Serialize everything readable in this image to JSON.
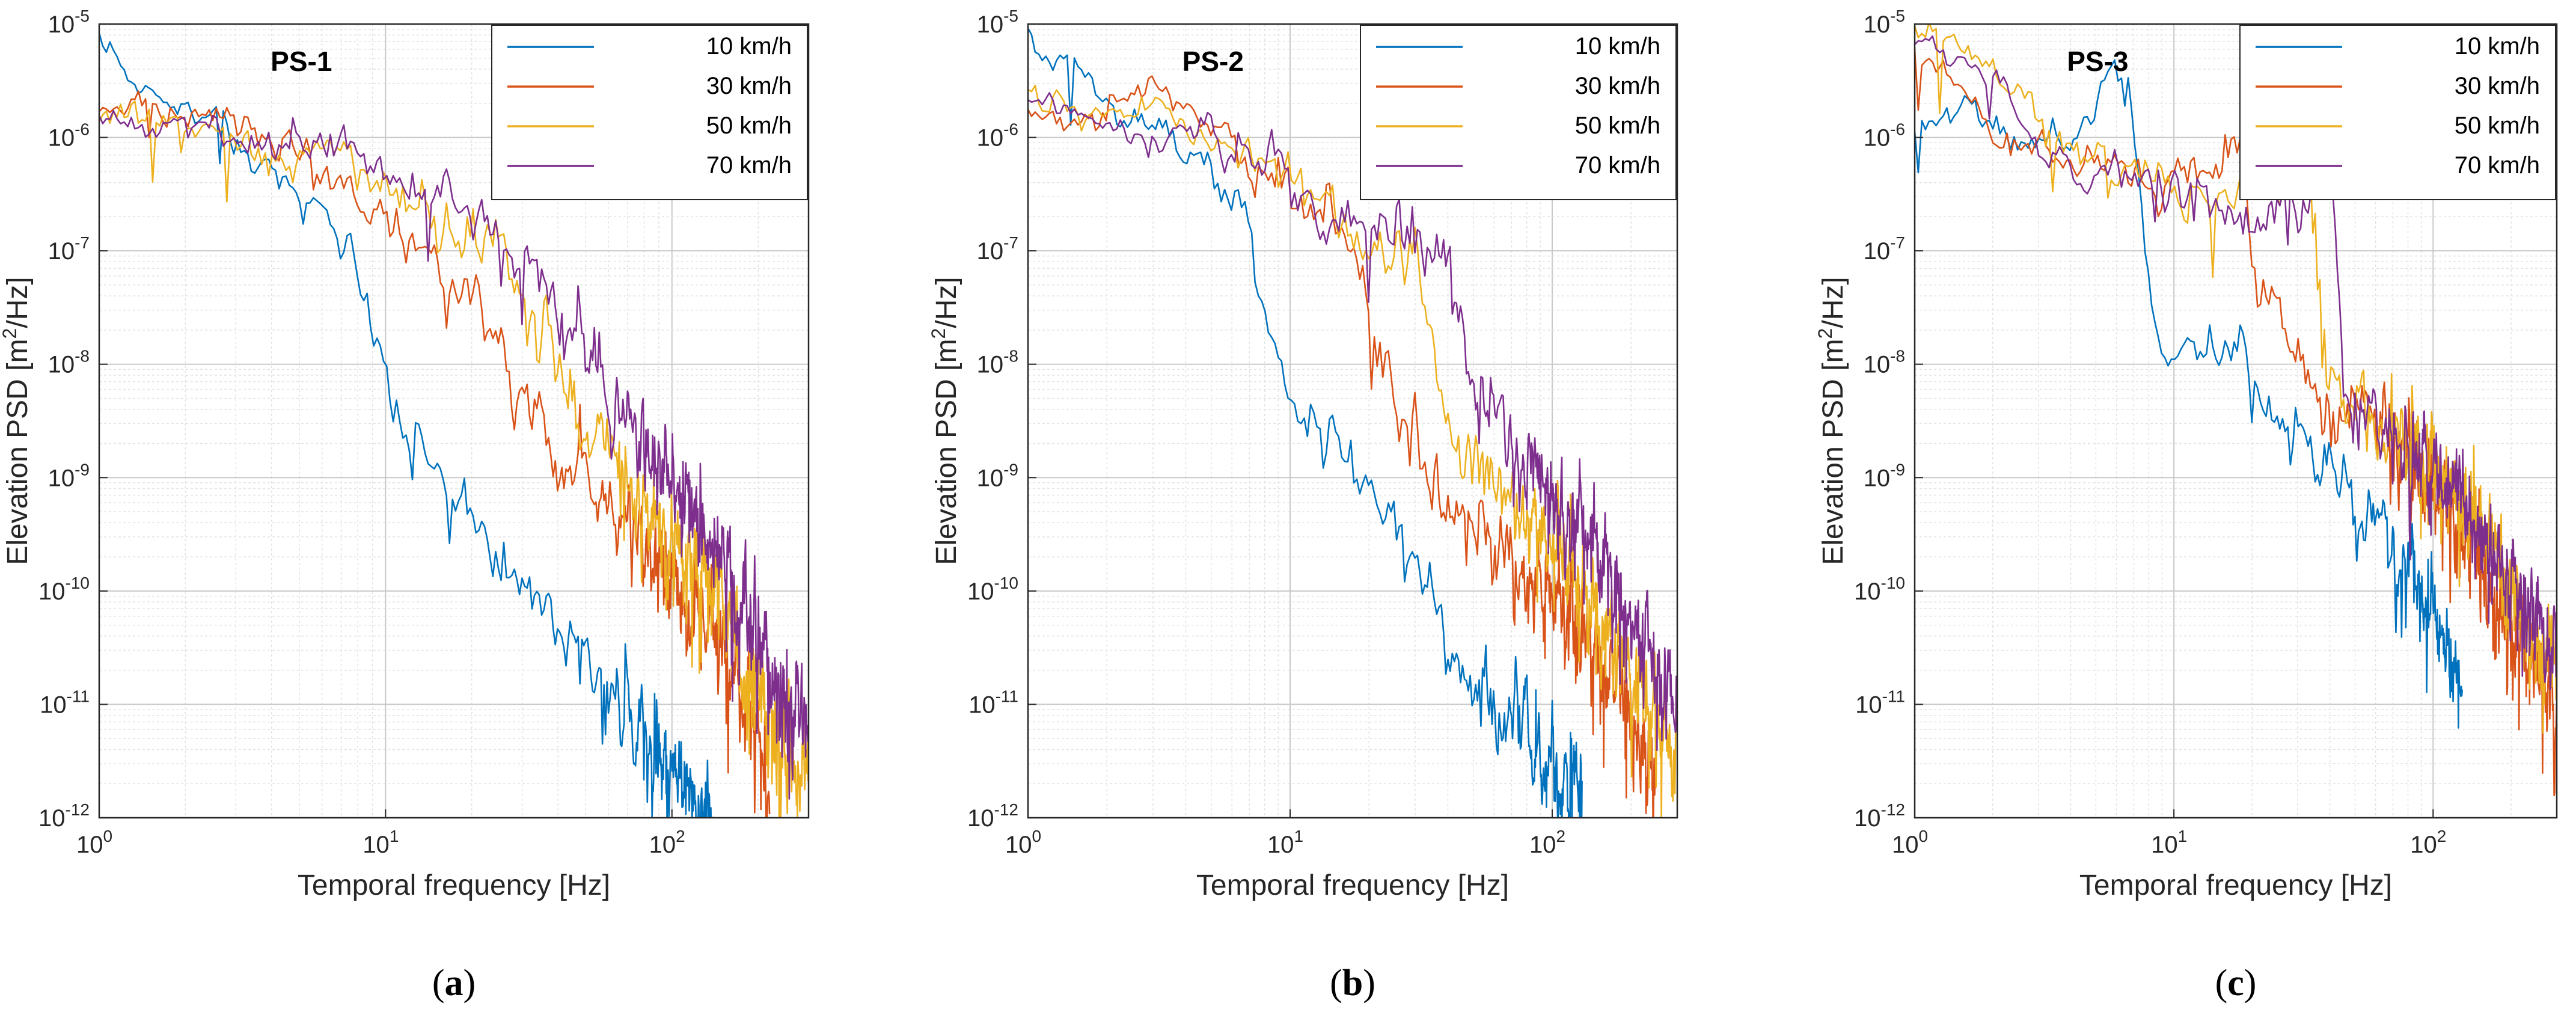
{
  "figure": {
    "colors": {
      "10 km/h": "#0072BD",
      "30 km/h": "#D95319",
      "50 km/h": "#EDB120",
      "70 km/h": "#7E2F8E"
    }
  },
  "chart_data": [
    {
      "type": "line",
      "panel_letter": "a",
      "title": "PS-1",
      "xlabel": "Temporal frequency [Hz]",
      "ylabel": "Elevation PSD [m²/Hz]",
      "ylabel_parts": {
        "pre": "Elevation PSD [m",
        "sup": "2",
        "post": "/Hz]"
      },
      "xscale": "log",
      "yscale": "log",
      "xlim": [
        1,
        300
      ],
      "ylim": [
        1e-12,
        1e-05
      ],
      "grid": true,
      "legend_position": "top-right",
      "x_ticks": [
        {
          "value": 1,
          "base": "10",
          "exp": "0"
        },
        {
          "value": 10,
          "base": "10",
          "exp": "1"
        },
        {
          "value": 100,
          "base": "10",
          "exp": "2"
        }
      ],
      "y_ticks": [
        {
          "value": 1e-05,
          "base": "10",
          "exp": "-5"
        },
        {
          "value": 1e-06,
          "base": "10",
          "exp": "-6"
        },
        {
          "value": 1e-07,
          "base": "10",
          "exp": "-7"
        },
        {
          "value": 1e-08,
          "base": "10",
          "exp": "-8"
        },
        {
          "value": 1e-09,
          "base": "10",
          "exp": "-9"
        },
        {
          "value": 1e-10,
          "base": "10",
          "exp": "-10"
        },
        {
          "value": 1e-11,
          "base": "10",
          "exp": "-11"
        },
        {
          "value": 1e-12,
          "base": "10",
          "exp": "-12"
        }
      ],
      "series": [
        {
          "name": "10 km/h",
          "x": [
            1,
            1.3,
            1.7,
            2,
            2.5,
            3,
            4,
            5,
            6,
            7,
            8,
            10,
            12,
            15,
            20,
            30,
            50,
            80,
            120,
            140
          ],
          "y": [
            8e-06,
            3e-06,
            2e-06,
            2e-06,
            1.5e-06,
            1e-06,
            5e-07,
            3e-07,
            2e-07,
            1.2e-07,
            5e-08,
            1e-08,
            3e-09,
            1e-09,
            4e-10,
            1.2e-10,
            2.5e-11,
            5e-12,
            1.5e-12,
            1e-12
          ]
        },
        {
          "name": "30 km/h",
          "x": [
            1,
            1.5,
            2,
            2.5,
            3,
            4,
            5,
            6,
            8,
            10,
            12,
            15,
            20,
            25,
            30,
            40,
            60,
            100,
            150,
            200,
            220
          ],
          "y": [
            1.6e-06,
            2e-06,
            1.5e-06,
            1.8e-06,
            1.2e-06,
            8e-07,
            7e-07,
            5e-07,
            3e-07,
            2e-07,
            1.2e-07,
            8e-08,
            3e-08,
            1.2e-08,
            5e-09,
            1.5e-09,
            5e-10,
            1.2e-10,
            3e-11,
            4e-12,
            1.5e-12
          ]
        },
        {
          "name": "50 km/h",
          "x": [
            1,
            1.5,
            2,
            3,
            4,
            5,
            6,
            7,
            8,
            10,
            15,
            20,
            30,
            40,
            50,
            60,
            80,
            100,
            150,
            200,
            300
          ],
          "y": [
            1.8e-06,
            1.5e-06,
            1.3e-06,
            1e-06,
            8e-07,
            6e-07,
            1e-06,
            7e-07,
            5e-07,
            4e-07,
            2e-07,
            1.2e-07,
            4e-08,
            1e-08,
            4e-09,
            2e-09,
            6e-10,
            3e-10,
            7e-11,
            1e-11,
            2e-12
          ]
        },
        {
          "name": "70 km/h",
          "x": [
            1,
            1.5,
            2,
            3,
            4,
            5,
            6,
            8,
            10,
            15,
            20,
            30,
            40,
            50,
            60,
            80,
            100,
            150,
            200,
            250,
            300
          ],
          "y": [
            1.5e-06,
            1.1e-06,
            1.3e-06,
            1e-06,
            8e-07,
            1e-06,
            9e-07,
            8e-07,
            4e-07,
            3e-07,
            2e-07,
            7e-08,
            3e-08,
            1.2e-08,
            6e-09,
            2e-09,
            8e-10,
            1.5e-10,
            5e-11,
            1.5e-11,
            5e-12
          ]
        }
      ]
    },
    {
      "type": "line",
      "panel_letter": "b",
      "title": "PS-2",
      "xlabel": "Temporal frequency [Hz]",
      "ylabel": "Elevation PSD [m²/Hz]",
      "ylabel_parts": {
        "pre": "Elevation PSD [m",
        "sup": "2",
        "post": "/Hz]"
      },
      "xscale": "log",
      "yscale": "log",
      "xlim": [
        1,
        300
      ],
      "ylim": [
        1e-12,
        1e-05
      ],
      "grid": true,
      "legend_position": "top-right",
      "x_ticks": [
        {
          "value": 1,
          "base": "10",
          "exp": "0"
        },
        {
          "value": 10,
          "base": "10",
          "exp": "1"
        },
        {
          "value": 100,
          "base": "10",
          "exp": "2"
        }
      ],
      "y_ticks": [
        {
          "value": 1e-05,
          "base": "10",
          "exp": "-5"
        },
        {
          "value": 1e-06,
          "base": "10",
          "exp": "-6"
        },
        {
          "value": 1e-07,
          "base": "10",
          "exp": "-7"
        },
        {
          "value": 1e-08,
          "base": "10",
          "exp": "-8"
        },
        {
          "value": 1e-09,
          "base": "10",
          "exp": "-9"
        },
        {
          "value": 1e-10,
          "base": "10",
          "exp": "-10"
        },
        {
          "value": 1e-11,
          "base": "10",
          "exp": "-11"
        },
        {
          "value": 1e-12,
          "base": "10",
          "exp": "-12"
        }
      ],
      "series": [
        {
          "name": "10 km/h",
          "x": [
            1,
            1.2,
            1.5,
            2,
            3,
            4,
            5,
            6,
            6.5,
            7,
            8,
            10,
            15,
            20,
            30,
            40,
            60,
            80,
            100,
            130
          ],
          "y": [
            9e-06,
            4e-06,
            5e-06,
            2e-06,
            1e-06,
            7e-07,
            5e-07,
            4e-07,
            3e-07,
            1.5e-07,
            2e-08,
            5e-09,
            2e-09,
            8e-10,
            1.5e-10,
            3e-11,
            1e-11,
            5e-12,
            3e-12,
            2e-12
          ]
        },
        {
          "name": "30 km/h",
          "x": [
            1,
            1.5,
            2,
            3,
            4,
            5,
            7,
            10,
            15,
            18,
            20,
            22,
            25,
            30,
            40,
            60,
            100,
            150,
            200,
            250
          ],
          "y": [
            2e-06,
            1.3e-06,
            1.5e-06,
            4e-06,
            1.5e-06,
            1e-06,
            6e-07,
            3e-07,
            1.5e-07,
            1e-07,
            3e-08,
            1e-08,
            5e-09,
            2e-09,
            7e-10,
            3e-10,
            1e-10,
            3e-11,
            8e-12,
            2e-12
          ]
        },
        {
          "name": "50 km/h",
          "x": [
            1,
            1.5,
            2,
            3,
            4,
            5,
            7,
            10,
            15,
            20,
            30,
            33,
            36,
            40,
            50,
            70,
            100,
            150,
            200,
            300
          ],
          "y": [
            2.5e-06,
            1.8e-06,
            1.4e-06,
            1.5e-06,
            1.2e-06,
            1e-06,
            7e-07,
            4e-07,
            2e-07,
            1.5e-07,
            8e-08,
            2e-08,
            8e-09,
            3e-09,
            1.5e-09,
            7e-10,
            3e-10,
            6e-11,
            2e-11,
            3e-12
          ]
        },
        {
          "name": "70 km/h",
          "x": [
            1,
            1.5,
            2,
            3,
            4,
            5,
            7,
            10,
            15,
            20,
            30,
            40,
            45,
            50,
            60,
            80,
            100,
            150,
            200,
            300
          ],
          "y": [
            2e-06,
            1.7e-06,
            1.3e-06,
            1e-06,
            1.2e-06,
            9e-07,
            7e-07,
            5e-07,
            2e-07,
            2.5e-07,
            1.5e-07,
            8e-08,
            3e-08,
            5e-09,
            2e-09,
            1.2e-09,
            7e-10,
            2e-10,
            5e-11,
            1e-11
          ]
        }
      ]
    },
    {
      "type": "line",
      "panel_letter": "c",
      "title": "PS-3",
      "xlabel": "Temporal frequency [Hz]",
      "ylabel": "Elevation PSD [m²/Hz]",
      "ylabel_parts": {
        "pre": "Elevation PSD [m",
        "sup": "2",
        "post": "/Hz]"
      },
      "xscale": "log",
      "yscale": "log",
      "xlim": [
        1,
        300
      ],
      "ylim": [
        1e-12,
        1e-05
      ],
      "grid": true,
      "legend_position": "top-right",
      "x_ticks": [
        {
          "value": 1,
          "base": "10",
          "exp": "0"
        },
        {
          "value": 10,
          "base": "10",
          "exp": "1"
        },
        {
          "value": 100,
          "base": "10",
          "exp": "2"
        }
      ],
      "y_ticks": [
        {
          "value": 1e-05,
          "base": "10",
          "exp": "-5"
        },
        {
          "value": 1e-06,
          "base": "10",
          "exp": "-6"
        },
        {
          "value": 1e-07,
          "base": "10",
          "exp": "-7"
        },
        {
          "value": 1e-08,
          "base": "10",
          "exp": "-8"
        },
        {
          "value": 1e-09,
          "base": "10",
          "exp": "-9"
        },
        {
          "value": 1e-10,
          "base": "10",
          "exp": "-10"
        },
        {
          "value": 1e-11,
          "base": "10",
          "exp": "-11"
        },
        {
          "value": 1e-12,
          "base": "10",
          "exp": "-12"
        }
      ],
      "series": [
        {
          "name": "10 km/h",
          "x": [
            1,
            1.3,
            1.7,
            2,
            3,
            4,
            5,
            6,
            7,
            8,
            9,
            10,
            12,
            15,
            17,
            20,
            30,
            50,
            80,
            100,
            130
          ],
          "y": [
            1.5e-06,
            1.5e-06,
            2e-06,
            1e-06,
            1e-06,
            8e-07,
            2e-06,
            4e-06,
            1e-06,
            1e-07,
            1.5e-08,
            8e-09,
            1e-08,
            1.2e-08,
            1.8e-08,
            6e-09,
            2e-09,
            6e-10,
            1.5e-10,
            6e-11,
            1.5e-11
          ]
        },
        {
          "name": "30 km/h",
          "x": [
            1,
            1.5,
            2,
            2.5,
            3,
            4,
            5,
            7,
            10,
            12,
            15,
            17,
            18,
            20,
            25,
            30,
            40,
            50,
            70,
            100,
            150,
            200,
            300
          ],
          "y": [
            6e-06,
            3e-06,
            1e-06,
            8e-07,
            9e-07,
            6e-07,
            5e-07,
            4e-07,
            3e-07,
            5e-07,
            6e-07,
            1e-06,
            8e-07,
            1e-07,
            2.5e-08,
            1e-08,
            3e-09,
            5e-09,
            2e-09,
            1e-09,
            2e-10,
            4e-11,
            1e-11
          ]
        },
        {
          "name": "50 km/h",
          "x": [
            1,
            1.5,
            2,
            3,
            4,
            5,
            7,
            10,
            15,
            20,
            25,
            30,
            35,
            40,
            50,
            70,
            100,
            150,
            200,
            300
          ],
          "y": [
            8e-06,
            6e-06,
            4e-06,
            1.5e-06,
            7e-07,
            6e-07,
            4e-07,
            3e-07,
            3e-07,
            4e-07,
            5e-07,
            6e-07,
            1.5e-07,
            5e-09,
            4e-09,
            2.5e-09,
            1.5e-09,
            4e-10,
            1e-10,
            2e-11
          ]
        },
        {
          "name": "70 km/h",
          "x": [
            1,
            1.5,
            2,
            2.5,
            3,
            4,
            5,
            7,
            10,
            15,
            20,
            30,
            40,
            42,
            45,
            50,
            70,
            100,
            150,
            200,
            300
          ],
          "y": [
            7e-06,
            5e-06,
            4e-06,
            1.5e-06,
            8e-07,
            5e-07,
            4e-07,
            4e-07,
            3e-07,
            2e-07,
            1.5e-07,
            2.5e-07,
            5e-07,
            2e-07,
            1e-08,
            5e-09,
            2e-09,
            1.2e-09,
            3e-10,
            1e-10,
            3e-11
          ]
        }
      ]
    }
  ]
}
